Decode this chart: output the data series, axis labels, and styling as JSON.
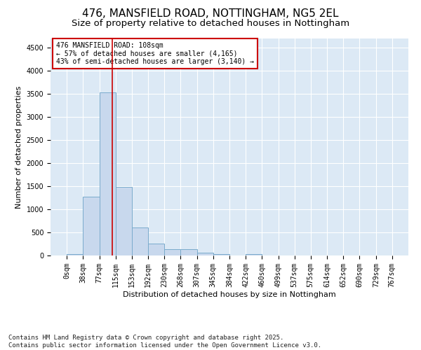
{
  "title": "476, MANSFIELD ROAD, NOTTINGHAM, NG5 2EL",
  "subtitle": "Size of property relative to detached houses in Nottingham",
  "xlabel": "Distribution of detached houses by size in Nottingham",
  "ylabel": "Number of detached properties",
  "bar_color": "#c8d8ed",
  "bar_edge_color": "#7aabcc",
  "axes_bg_color": "#dce9f5",
  "fig_bg_color": "#ffffff",
  "grid_color": "#ffffff",
  "vline_x": 108,
  "vline_color": "#cc0000",
  "annotation_text": "476 MANSFIELD ROAD: 108sqm\n← 57% of detached houses are smaller (4,165)\n43% of semi-detached houses are larger (3,140) →",
  "annotation_box_color": "#ffffff",
  "annotation_box_edge_color": "#cc0000",
  "bin_edges": [
    0,
    38,
    77,
    115,
    153,
    192,
    230,
    268,
    307,
    345,
    384,
    422,
    460,
    499,
    537,
    575,
    614,
    652,
    690,
    729,
    767
  ],
  "bar_heights": [
    30,
    1280,
    3530,
    1490,
    600,
    255,
    130,
    130,
    65,
    30,
    0,
    30,
    0,
    0,
    0,
    0,
    0,
    0,
    0,
    0
  ],
  "ylim": [
    0,
    4700
  ],
  "yticks": [
    0,
    500,
    1000,
    1500,
    2000,
    2500,
    3000,
    3500,
    4000,
    4500
  ],
  "footnote": "Contains HM Land Registry data © Crown copyright and database right 2025.\nContains public sector information licensed under the Open Government Licence v3.0.",
  "title_fontsize": 11,
  "subtitle_fontsize": 9.5,
  "label_fontsize": 8,
  "tick_fontsize": 7,
  "annotation_fontsize": 7,
  "footnote_fontsize": 6.5
}
